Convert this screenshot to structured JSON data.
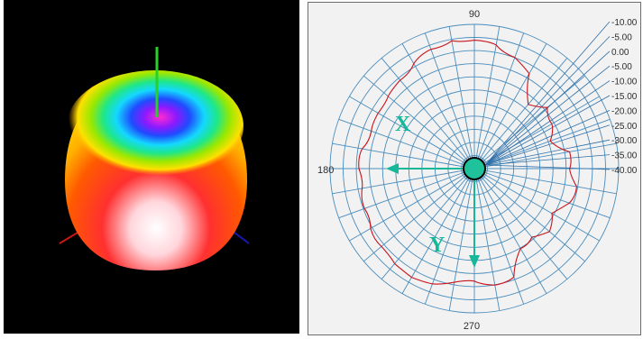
{
  "chart_data": [
    {
      "type": "surface-3d",
      "description_visible": false,
      "color_scale": [
        "#ff0000",
        "#ff7a00",
        "#ffd400",
        "#7be000",
        "#00e0b8",
        "#1a5aff",
        "#7a1aff",
        "#ff2ad0"
      ],
      "axes_colors": {
        "z": "#28d028",
        "x": "#c81818",
        "y": "#1818b4"
      }
    },
    {
      "type": "polar",
      "angle_labels": {
        "top": "90",
        "left": "180",
        "bottom": "270"
      },
      "radial_scale_labels": [
        "-10.00",
        "-5.00",
        "0.00",
        "-5.00",
        "-10.00",
        "-15.00",
        "-20.00",
        "-25.00",
        "-30.00",
        "-35.00",
        "-40.00"
      ],
      "ring_count": 11,
      "spoke_step_deg": 10,
      "trace_color": "#c8141e",
      "series": [
        {
          "angle_deg": [
            0,
            10,
            20,
            30,
            40,
            50,
            60,
            70,
            80,
            90,
            100,
            110,
            120,
            130,
            140,
            150,
            160,
            170,
            180,
            190,
            200,
            210,
            220,
            230,
            240,
            250,
            260,
            270,
            280,
            290,
            300,
            310,
            320,
            330,
            340,
            350
          ],
          "radius_norm": [
            0.66,
            0.67,
            0.56,
            0.62,
            0.66,
            0.58,
            0.76,
            0.82,
            0.87,
            0.89,
            0.9,
            0.88,
            0.84,
            0.8,
            0.78,
            0.77,
            0.76,
            0.79,
            0.8,
            0.79,
            0.81,
            0.83,
            0.84,
            0.86,
            0.87,
            0.85,
            0.8,
            0.78,
            0.82,
            0.8,
            0.64,
            0.62,
            0.68,
            0.62,
            0.7,
            0.72
          ]
        }
      ],
      "arrows": [
        {
          "label": "X",
          "direction": "180"
        },
        {
          "label": "Y",
          "direction": "270"
        }
      ],
      "center_marker_color": "#1fc29b",
      "arrow_color": "#16b899"
    }
  ]
}
